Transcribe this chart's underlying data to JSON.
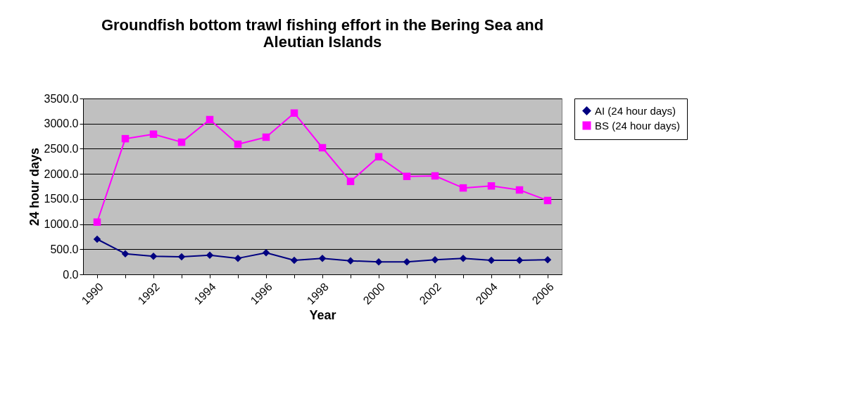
{
  "chart_data": {
    "type": "line",
    "title": "Groundfish bottom trawl fishing effort in the Bering Sea and Aleutian Islands",
    "xlabel": "Year",
    "ylabel": "24 hour days",
    "categories": [
      "1990",
      null,
      "1992",
      null,
      "1994",
      null,
      "1996",
      null,
      "1998",
      null,
      "2000",
      null,
      "2002",
      null,
      "2004",
      null,
      "2006"
    ],
    "series": [
      {
        "name": "AI (24 hour days)",
        "color": "#000080",
        "marker": "diamond",
        "values": [
          700,
          410,
          360,
          350,
          380,
          320,
          430,
          280,
          320,
          270,
          250,
          250,
          290,
          320,
          280,
          280,
          290
        ]
      },
      {
        "name": "BS (24 hour days)",
        "color": "#ff00ff",
        "marker": "square",
        "values": [
          1040,
          2700,
          2790,
          2630,
          3080,
          2590,
          2730,
          3210,
          2520,
          1850,
          2340,
          1950,
          1960,
          1720,
          1760,
          1680,
          1470
        ]
      }
    ],
    "ylim": [
      0,
      3500
    ],
    "yticks": [
      {
        "value": 0,
        "label": "0.0"
      },
      {
        "value": 500,
        "label": "500.0"
      },
      {
        "value": 1000,
        "label": "1000.0"
      },
      {
        "value": 1500,
        "label": "1500.0"
      },
      {
        "value": 2000,
        "label": "2000.0"
      },
      {
        "value": 2500,
        "label": "2500.0"
      },
      {
        "value": 3000,
        "label": "3000.0"
      },
      {
        "value": 3500,
        "label": "3500.0"
      }
    ],
    "grid": "y",
    "legend": "right"
  }
}
